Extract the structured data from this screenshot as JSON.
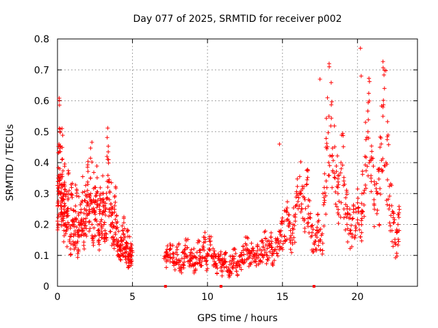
{
  "chart_data": {
    "type": "scatter",
    "title": "Day 077 of 2025, SRMTID for receiver p002",
    "xlabel": "GPS time / hours",
    "ylabel": "SRMTID / TECUs",
    "xlim": [
      0,
      24
    ],
    "ylim": [
      0,
      0.8
    ],
    "xticks": [
      0,
      5,
      10,
      15,
      20
    ],
    "yticks": [
      0,
      0.1,
      0.2,
      0.3,
      0.4,
      0.5,
      0.6,
      0.7,
      0.8
    ],
    "x_tick_labels": [
      "0",
      "5",
      "10",
      "15",
      "20"
    ],
    "y_tick_labels": [
      "0",
      "0.1",
      "0.2",
      "0.3",
      "0.4",
      "0.5",
      "0.6",
      "0.7",
      "0.8"
    ],
    "grid": true,
    "marker": "+",
    "color": "#ff0000",
    "series": [
      {
        "name": "SRMTID",
        "x": [
          0.0,
          0.05,
          0.1,
          0.15,
          0.2,
          0.25,
          0.3,
          0.35,
          0.4,
          0.45,
          0.5,
          0.6,
          0.7,
          0.8,
          0.9,
          1.0,
          1.1,
          1.2,
          1.3,
          1.4,
          1.5,
          1.6,
          1.7,
          1.8,
          1.9,
          2.0,
          2.1,
          2.2,
          2.3,
          2.4,
          2.5,
          2.6,
          2.7,
          2.8,
          2.9,
          3.0,
          3.1,
          3.2,
          3.3,
          3.4,
          3.5,
          3.6,
          3.7,
          3.8,
          3.9,
          4.0,
          4.1,
          4.2,
          4.3,
          4.4,
          4.5,
          4.6,
          4.7,
          4.8,
          4.9,
          5.0,
          7.1,
          7.3,
          7.5,
          7.7,
          7.9,
          8.1,
          8.3,
          8.5,
          8.7,
          8.9,
          9.1,
          9.3,
          9.5,
          9.7,
          9.9,
          10.1,
          10.3,
          10.5,
          10.7,
          10.9,
          11.1,
          11.3,
          11.5,
          11.7,
          11.9,
          12.1,
          12.3,
          12.5,
          12.7,
          12.9,
          13.1,
          13.3,
          13.5,
          13.7,
          13.9,
          14.1,
          14.3,
          14.5,
          14.7,
          14.9,
          15.1,
          15.3,
          15.5,
          15.7,
          15.9,
          16.1,
          16.3,
          16.5,
          16.7,
          16.9,
          17.1,
          17.3,
          17.5,
          17.7,
          17.9,
          18.1,
          18.3,
          18.5,
          18.7,
          18.9,
          19.1,
          19.3,
          19.5,
          19.7,
          19.9,
          20.1,
          20.3,
          20.5,
          20.7,
          20.9,
          21.1,
          21.3,
          21.5,
          21.7,
          21.9,
          22.1,
          22.3,
          22.5,
          22.7
        ],
        "y": [
          0.26,
          0.35,
          0.46,
          0.38,
          0.3,
          0.25,
          0.41,
          0.28,
          0.22,
          0.3,
          0.24,
          0.19,
          0.28,
          0.15,
          0.25,
          0.2,
          0.17,
          0.26,
          0.14,
          0.23,
          0.2,
          0.27,
          0.18,
          0.25,
          0.22,
          0.31,
          0.26,
          0.35,
          0.2,
          0.28,
          0.24,
          0.3,
          0.18,
          0.26,
          0.21,
          0.28,
          0.2,
          0.23,
          0.42,
          0.34,
          0.25,
          0.2,
          0.16,
          0.24,
          0.19,
          0.14,
          0.1,
          0.12,
          0.15,
          0.17,
          0.11,
          0.14,
          0.09,
          0.12,
          0.1,
          0.11,
          0.09,
          0.1,
          0.12,
          0.08,
          0.11,
          0.07,
          0.09,
          0.12,
          0.08,
          0.1,
          0.07,
          0.11,
          0.09,
          0.13,
          0.08,
          0.12,
          0.1,
          0.07,
          0.09,
          0.06,
          0.08,
          0.05,
          0.07,
          0.09,
          0.06,
          0.08,
          0.1,
          0.12,
          0.09,
          0.11,
          0.08,
          0.1,
          0.12,
          0.14,
          0.11,
          0.13,
          0.1,
          0.12,
          0.14,
          0.18,
          0.21,
          0.24,
          0.15,
          0.2,
          0.26,
          0.3,
          0.25,
          0.28,
          0.22,
          0.16,
          0.14,
          0.18,
          0.15,
          0.3,
          0.45,
          0.55,
          0.42,
          0.35,
          0.3,
          0.4,
          0.25,
          0.2,
          0.18,
          0.22,
          0.24,
          0.2,
          0.3,
          0.42,
          0.5,
          0.35,
          0.28,
          0.3,
          0.45,
          0.55,
          0.4,
          0.25,
          0.18,
          0.14,
          0.2
        ],
        "extra_highlights": [
          {
            "x": 20.2,
            "y": 0.77
          },
          {
            "x": 20.25,
            "y": 0.68
          },
          {
            "x": 17.5,
            "y": 0.67
          },
          {
            "x": 21.8,
            "y": 0.64
          },
          {
            "x": 18.0,
            "y": 0.61
          },
          {
            "x": 14.8,
            "y": 0.46
          }
        ],
        "zero_markers": [
          7.2,
          10.9,
          17.1
        ]
      }
    ]
  }
}
